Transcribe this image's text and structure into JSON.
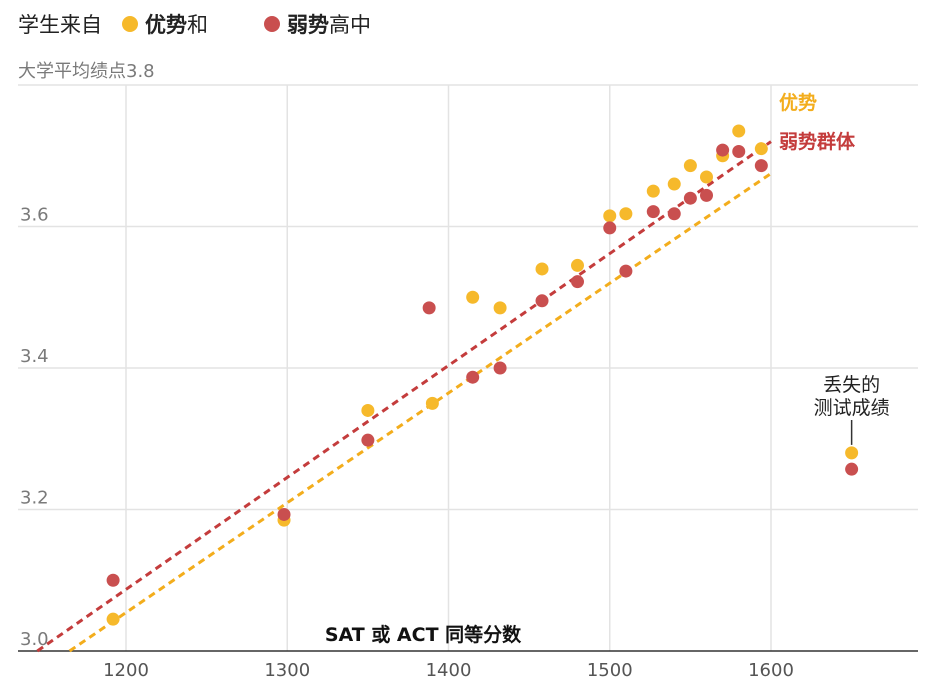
{
  "legend": {
    "lead": "学生来自",
    "items": [
      {
        "bold": "优势",
        "rest": "和",
        "color": "#f6b92b"
      },
      {
        "bold": "弱势",
        "rest": "高中",
        "color": "#c94f4f"
      }
    ]
  },
  "chart_data": {
    "type": "scatter",
    "xlabel": "SAT 或 ACT 同等分数",
    "ylabel": "大学平均绩点",
    "xlim": [
      1140,
      1690
    ],
    "ylim": [
      3.0,
      3.8
    ],
    "x_ticks": [
      1200,
      1300,
      1400,
      1500,
      1600
    ],
    "y_ticks": [
      3.0,
      3.2,
      3.4,
      3.6,
      3.8
    ],
    "y_tick_labels": [
      "3.0",
      "3.2",
      "3.4",
      "3.6",
      "3.8"
    ],
    "grid": true,
    "series": [
      {
        "name": "优势",
        "color": "#f6b92b",
        "trend_label": "优势",
        "trend": [
          [
            1165,
            3.0
          ],
          [
            1600,
            3.675
          ]
        ],
        "points": [
          [
            1192,
            3.045
          ],
          [
            1298,
            3.185
          ],
          [
            1350,
            3.34
          ],
          [
            1390,
            3.35
          ],
          [
            1415,
            3.5
          ],
          [
            1432,
            3.485
          ],
          [
            1458,
            3.54
          ],
          [
            1480,
            3.545
          ],
          [
            1500,
            3.615
          ],
          [
            1510,
            3.618
          ],
          [
            1527,
            3.65
          ],
          [
            1540,
            3.66
          ],
          [
            1550,
            3.686
          ],
          [
            1560,
            3.67
          ],
          [
            1570,
            3.7
          ],
          [
            1580,
            3.735
          ],
          [
            1594,
            3.71
          ],
          [
            1650,
            3.28
          ]
        ]
      },
      {
        "name": "弱势群体",
        "color": "#c94f4f",
        "trend_label": "弱势群体",
        "trend": [
          [
            1145,
            3.0
          ],
          [
            1600,
            3.72
          ]
        ],
        "points": [
          [
            1192,
            3.1
          ],
          [
            1298,
            3.193
          ],
          [
            1350,
            3.298
          ],
          [
            1388,
            3.485
          ],
          [
            1415,
            3.387
          ],
          [
            1432,
            3.4
          ],
          [
            1458,
            3.495
          ],
          [
            1480,
            3.522
          ],
          [
            1500,
            3.598
          ],
          [
            1510,
            3.537
          ],
          [
            1527,
            3.621
          ],
          [
            1540,
            3.618
          ],
          [
            1550,
            3.64
          ],
          [
            1560,
            3.644
          ],
          [
            1570,
            3.708
          ],
          [
            1580,
            3.706
          ],
          [
            1594,
            3.686
          ],
          [
            1650,
            3.257
          ]
        ]
      }
    ],
    "annotation": {
      "line1": "丢失的",
      "line2": "测试成绩",
      "x": 1650,
      "y": 3.28
    }
  }
}
